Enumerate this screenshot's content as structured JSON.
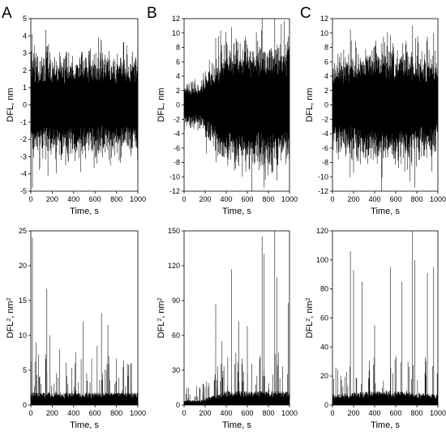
{
  "figure": {
    "panel_letters": [
      "A",
      "B",
      "C"
    ],
    "x_axis_label": "Time, s",
    "y_axis_label_top": "DFL, nm",
    "y_axis_label_bottom_prefix": "DFL",
    "y_axis_label_bottom_sup": "2",
    "y_axis_label_bottom_unit": ", nm",
    "y_axis_label_bottom_unit_sup": "2",
    "line_color": "#000000"
  },
  "chart_data": [
    {
      "type": "line",
      "panel": "A",
      "row": "top",
      "xlabel": "Time, s",
      "ylabel": "DFL, nm",
      "xlim": [
        0,
        1000
      ],
      "ylim": [
        -5,
        5
      ],
      "x_ticks": [
        0,
        200,
        400,
        600,
        800,
        1000
      ],
      "y_ticks": [
        -5,
        -4,
        -3,
        -2,
        -1,
        0,
        1,
        2,
        3,
        4,
        5
      ],
      "signal": {
        "time_range_s": [
          0,
          1000
        ],
        "typical_amplitude": 1.0,
        "peak_max": 4.1,
        "peak_min": -4.8,
        "spikes": [
          [
            10,
            4.1
          ],
          [
            15,
            -4.8
          ],
          [
            50,
            3.0
          ],
          [
            150,
            3.4
          ],
          [
            160,
            -4.1
          ],
          [
            480,
            3.1
          ],
          [
            650,
            3.0
          ],
          [
            930,
            2.1
          ]
        ]
      }
    },
    {
      "type": "line",
      "panel": "B",
      "row": "top",
      "xlabel": "Time, s",
      "ylabel": "DFL, nm",
      "xlim": [
        0,
        1000
      ],
      "ylim": [
        -12,
        12
      ],
      "x_ticks": [
        0,
        200,
        400,
        600,
        800,
        1000
      ],
      "y_ticks": [
        -12,
        -10,
        -8,
        -6,
        -4,
        -2,
        0,
        2,
        4,
        6,
        8,
        10,
        12
      ],
      "signal": {
        "time_range_s": [
          0,
          1000
        ],
        "typical_amplitude": 3.0,
        "peak_max": 12.0,
        "peak_min": -11.5,
        "spikes": [
          [
            300,
            9.3
          ],
          [
            450,
            10.8
          ],
          [
            520,
            -8.5
          ],
          [
            740,
            12.0
          ],
          [
            760,
            -11.5
          ],
          [
            860,
            12.0
          ],
          [
            880,
            -10.5
          ],
          [
            990,
            9.5
          ]
        ]
      }
    },
    {
      "type": "line",
      "panel": "C",
      "row": "top",
      "xlabel": "Time, s",
      "ylabel": "DFL, nm",
      "xlim": [
        0,
        1000
      ],
      "ylim": [
        -12,
        12
      ],
      "x_ticks": [
        0,
        200,
        400,
        600,
        800,
        1000
      ],
      "y_ticks": [
        -12,
        -10,
        -8,
        -6,
        -4,
        -2,
        0,
        2,
        4,
        6,
        8,
        10,
        12
      ],
      "signal": {
        "time_range_s": [
          0,
          1000
        ],
        "typical_amplitude": 2.8,
        "peak_max": 11.0,
        "peak_min": -11.5,
        "spikes": [
          [
            170,
            10.5
          ],
          [
            200,
            -9.5
          ],
          [
            550,
            9.7
          ],
          [
            760,
            11.0
          ],
          [
            780,
            -11.5
          ],
          [
            900,
            9.5
          ],
          [
            960,
            10.0
          ]
        ]
      }
    },
    {
      "type": "line",
      "panel": "A",
      "row": "bottom",
      "xlabel": "Time, s",
      "ylabel": "DFL2, nm2",
      "xlim": [
        0,
        1000
      ],
      "ylim": [
        0,
        25
      ],
      "x_ticks": [
        0,
        200,
        400,
        600,
        800,
        1000
      ],
      "y_ticks": [
        0,
        5,
        10,
        15,
        20,
        25
      ],
      "signal": {
        "time_range_s": [
          0,
          1000
        ],
        "baseline_max": 1.5,
        "peak_max": 24.0,
        "spikes": [
          [
            15,
            24.0
          ],
          [
            50,
            9.0
          ],
          [
            150,
            16.7
          ],
          [
            180,
            10.0
          ],
          [
            270,
            8.0
          ],
          [
            490,
            12.0
          ],
          [
            620,
            8.5
          ],
          [
            660,
            13.2
          ],
          [
            720,
            11.5
          ],
          [
            940,
            6.0
          ]
        ]
      }
    },
    {
      "type": "line",
      "panel": "B",
      "row": "bottom",
      "xlabel": "Time, s",
      "ylabel": "DFL2, nm2",
      "xlim": [
        0,
        1000
      ],
      "ylim": [
        0,
        150
      ],
      "x_ticks": [
        0,
        200,
        400,
        600,
        800,
        1000
      ],
      "y_ticks": [
        0,
        30,
        60,
        90,
        120,
        150
      ],
      "signal": {
        "time_range_s": [
          0,
          1000
        ],
        "baseline_max": 10,
        "peak_max": 150,
        "spikes": [
          [
            300,
            87
          ],
          [
            360,
            55
          ],
          [
            450,
            117
          ],
          [
            520,
            72
          ],
          [
            600,
            68
          ],
          [
            740,
            145
          ],
          [
            760,
            130
          ],
          [
            860,
            150
          ],
          [
            880,
            110
          ],
          [
            990,
            88
          ]
        ]
      }
    },
    {
      "type": "line",
      "panel": "C",
      "row": "bottom",
      "xlabel": "Time, s",
      "ylabel": "DFL2, nm2",
      "xlim": [
        0,
        1000
      ],
      "ylim": [
        0,
        120
      ],
      "x_ticks": [
        0,
        200,
        400,
        600,
        800,
        1000
      ],
      "y_ticks": [
        0,
        20,
        40,
        60,
        80,
        100,
        120
      ],
      "signal": {
        "time_range_s": [
          0,
          1000
        ],
        "baseline_max": 8,
        "peak_max": 120,
        "spikes": [
          [
            170,
            106
          ],
          [
            200,
            93
          ],
          [
            280,
            85
          ],
          [
            400,
            55
          ],
          [
            550,
            95
          ],
          [
            660,
            85
          ],
          [
            760,
            120
          ],
          [
            780,
            100
          ],
          [
            900,
            91
          ],
          [
            960,
            95
          ]
        ]
      }
    }
  ]
}
